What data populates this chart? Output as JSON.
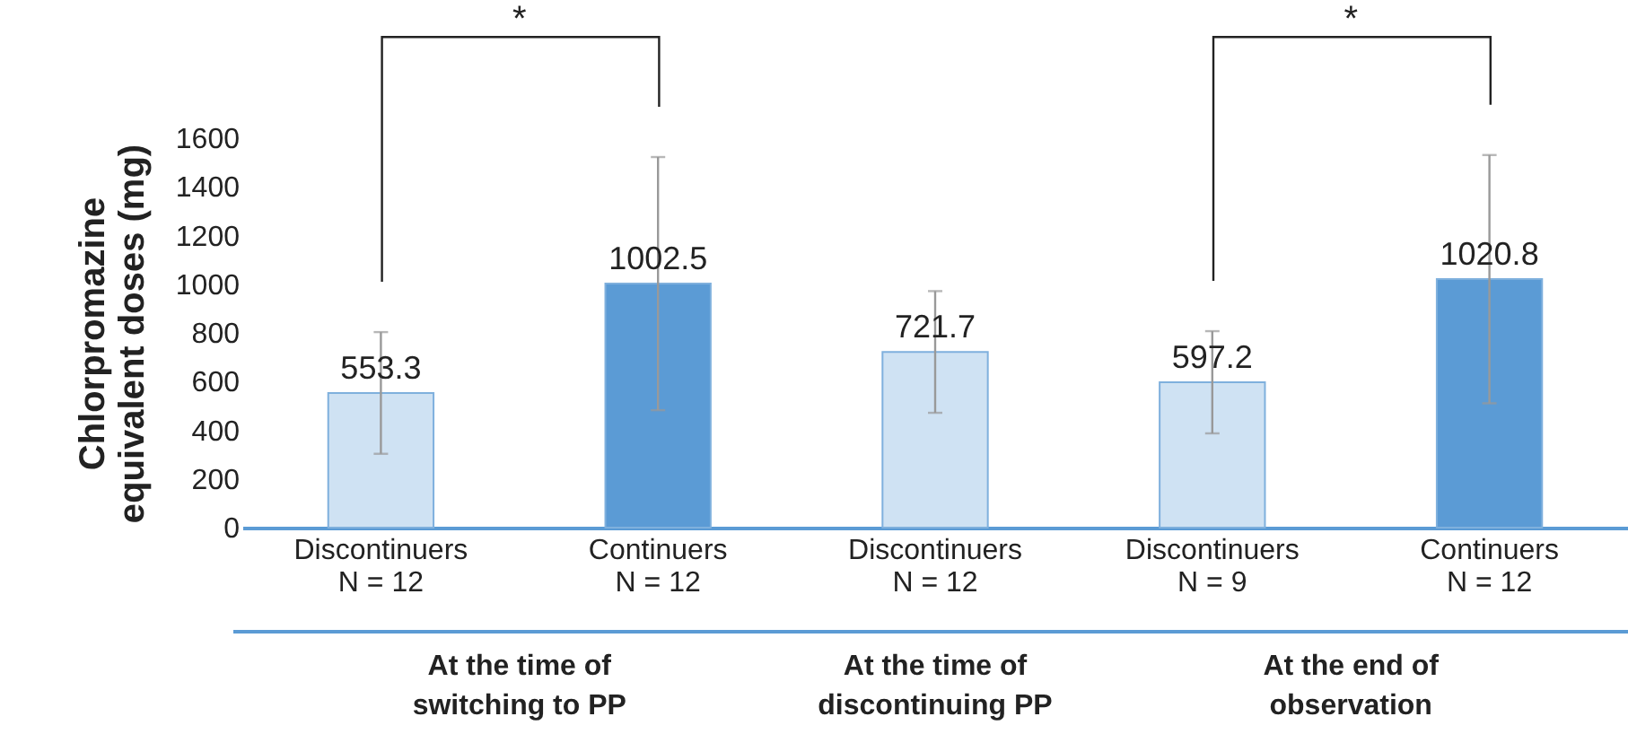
{
  "chart_data": {
    "type": "bar",
    "ylabel": "Chlorpromazine equivalent doses (mg)",
    "categories": [
      "Discontinuers\nN = 12",
      "Continuers\nN = 12",
      "Discontinuers\nN = 12",
      "Discontinuers\nN = 9",
      "Continuers\nN = 12"
    ],
    "values": [
      553.3,
      1002.5,
      721.7,
      597.2,
      1020.8
    ],
    "colors": [
      "#cfe2f3",
      "#5b9bd5",
      "#cfe2f3",
      "#cfe2f3",
      "#5b9bd5"
    ],
    "errors": [
      250,
      520,
      250,
      210,
      510
    ],
    "data_labels": true,
    "ylim": [
      0,
      1600
    ],
    "yticks": [
      0,
      200,
      400,
      600,
      800,
      1000,
      1200,
      1400,
      1600
    ],
    "grid": false,
    "annotations": [
      "*",
      "*",
      "At the time of switching to PP",
      "At the time of discontinuing PP",
      "At the end of observation"
    ]
  }
}
